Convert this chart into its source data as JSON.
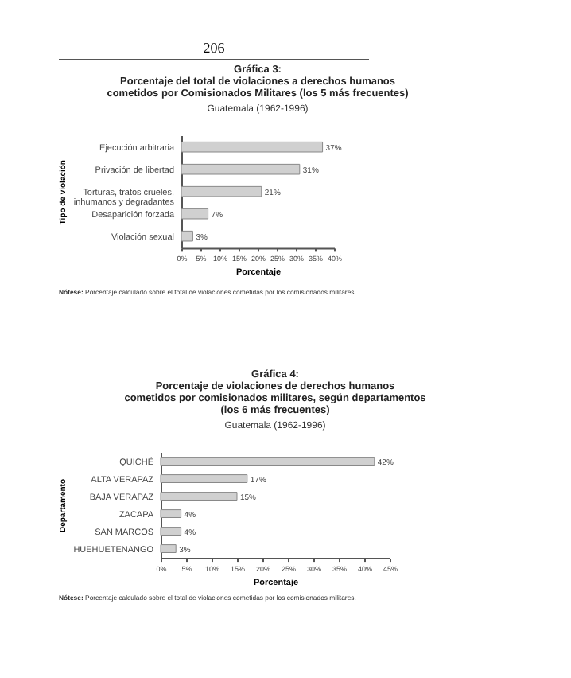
{
  "chart_data": [
    {
      "type": "bar",
      "orientation": "horizontal",
      "title": "Gráfica 3:\nPorcentaje del total de violaciones a derechos humanos\ncometidos por Comisionados Militares (los 5 más frecuentes)",
      "subtitle": "Guatemala (1962-1996)",
      "xlabel": "Porcentaje",
      "ylabel": "Tipo de violación",
      "categories": [
        "Ejecución arbitraria",
        "Privación de libertad",
        "Torturas, tratos crueles,\ninhumanos y degradantes",
        "Desaparición forzada",
        "Violación sexual"
      ],
      "values": [
        37,
        31,
        21,
        7,
        3
      ],
      "value_labels": [
        "37%",
        "31%",
        "21%",
        "7%",
        "3%"
      ],
      "color": "#d0d0d0",
      "xlim": [
        0,
        40
      ],
      "xticks": [
        {
          "value": 0,
          "label": "0%"
        },
        {
          "value": 5,
          "label": "5%"
        },
        {
          "value": 10,
          "label": "10%"
        },
        {
          "value": 15,
          "label": "15%"
        },
        {
          "value": 20,
          "label": "20%"
        },
        {
          "value": 25,
          "label": "25%"
        },
        {
          "value": 30,
          "label": "30%"
        },
        {
          "value": 35,
          "label": "35%"
        },
        {
          "value": 40,
          "label": "40%"
        }
      ],
      "annotations": [
        "206",
        "Nótese: Porcentaje calculado sobre el total de violaciones cometidas por los comisionados militares."
      ]
    },
    {
      "type": "bar",
      "orientation": "horizontal",
      "title": "Gráfica 4:\nPorcentaje de violaciones de derechos humanos\ncometidos por comisionados militares, según departamentos\n(los 6 más frecuentes)",
      "subtitle": "Guatemala (1962-1996)",
      "xlabel": "Porcentaje",
      "ylabel": "Departamento",
      "categories": [
        "QUICHÉ",
        "ALTA VERAPAZ",
        "BAJA VERAPAZ",
        "ZACAPA",
        "SAN MARCOS",
        "HUEHUETENANGO"
      ],
      "values": [
        42,
        17,
        15,
        4,
        4,
        3
      ],
      "value_labels": [
        "42%",
        "17%",
        "15%",
        "4%",
        "4%",
        "3%"
      ],
      "color": "#d0d0d0",
      "xlim": [
        0,
        45
      ],
      "xticks": [
        {
          "value": 0,
          "label": "0%"
        },
        {
          "value": 5,
          "label": "5%"
        },
        {
          "value": 10,
          "label": "10%"
        },
        {
          "value": 15,
          "label": "15%"
        },
        {
          "value": 20,
          "label": "20%"
        },
        {
          "value": 25,
          "label": "25%"
        },
        {
          "value": 30,
          "label": "30%"
        },
        {
          "value": 35,
          "label": "35%"
        },
        {
          "value": 40,
          "label": "40%"
        },
        {
          "value": 45,
          "label": "45%"
        }
      ],
      "annotations": [
        "Nótese: Porcentaje calculado sobre el total de violaciones cometidas por los comisionados militares."
      ]
    }
  ]
}
